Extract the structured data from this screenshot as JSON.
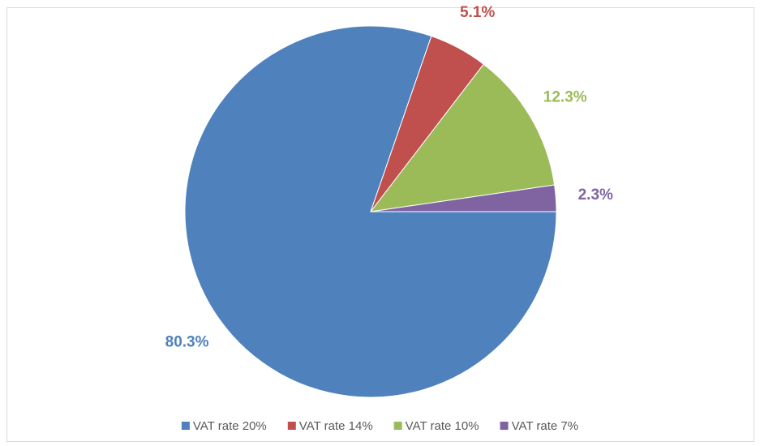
{
  "chart_data": {
    "type": "pie",
    "categories": [
      "VAT rate 20%",
      "VAT rate 14%",
      "VAT rate 10%",
      "VAT rate 7%"
    ],
    "values": [
      80.3,
      5.1,
      12.3,
      2.3
    ],
    "value_labels": [
      "80.3%",
      "5.1%",
      "12.3%",
      "2.3%"
    ],
    "colors": [
      "#4f81bd",
      "#c0504d",
      "#9bbb59",
      "#8064a2"
    ],
    "legend": "bottom"
  }
}
